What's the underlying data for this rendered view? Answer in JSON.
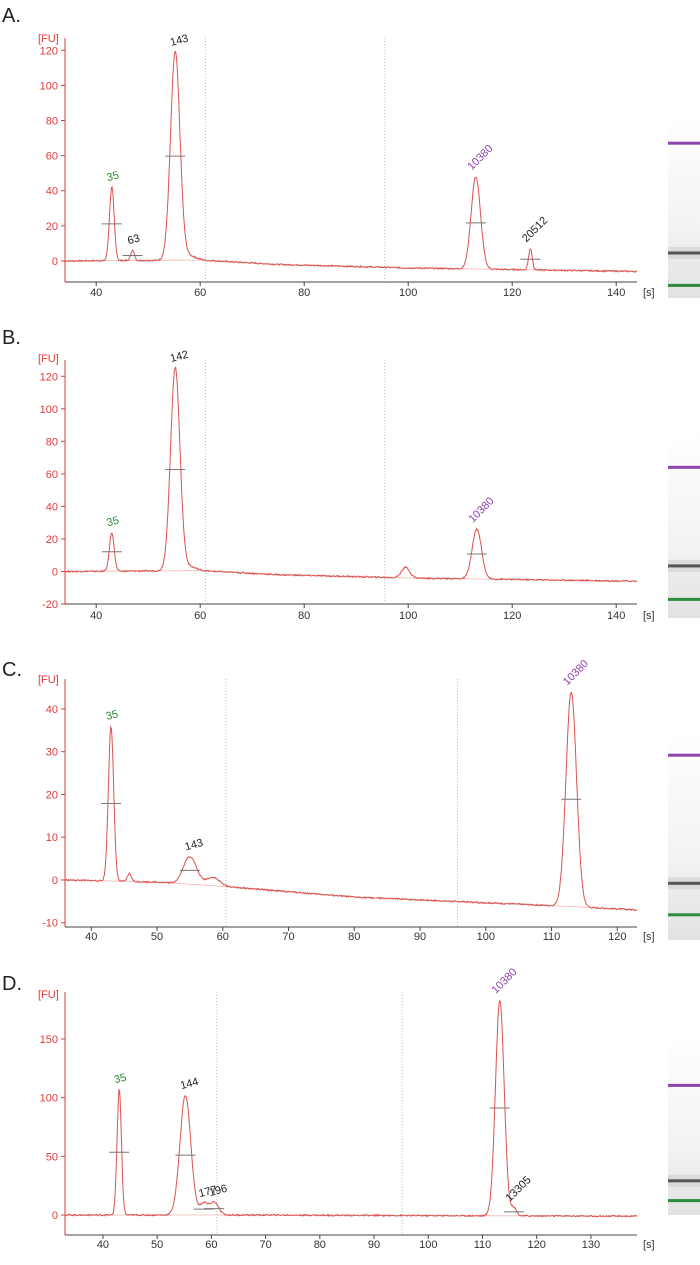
{
  "colors": {
    "axis_red": "#e23b3b",
    "trace": "#d9534f",
    "baseline": "#f2b7b3",
    "marker_lower": "#2e8b3a",
    "marker_upper": "#8e44ad",
    "sample_band": "#555555",
    "vline": "#bbbbbb",
    "peak_black": "#222222"
  },
  "chart_data": [
    {
      "panel": "A.",
      "type": "line",
      "ylabel": "[FU]",
      "xunit": "[s]",
      "xlim": [
        34,
        144
      ],
      "ylim": [
        -12,
        127
      ],
      "xticks": [
        40,
        60,
        80,
        100,
        120,
        140
      ],
      "yticks": [
        0,
        20,
        40,
        60,
        80,
        100,
        120
      ],
      "vlines": [
        61,
        95.5
      ],
      "baseline": [
        [
          34,
          0
        ],
        [
          60,
          0.5
        ],
        [
          75,
          -2
        ],
        [
          100,
          -4
        ],
        [
          144,
          -6
        ]
      ],
      "peaks": [
        {
          "x": 43,
          "y": 42,
          "w": 0.45,
          "label": "35",
          "color": "green"
        },
        {
          "x": 47,
          "y": 6,
          "w": 0.35,
          "label": "63",
          "color": "black"
        },
        {
          "x": 55.2,
          "y": 119,
          "w": 0.9,
          "label": "143",
          "color": "black"
        },
        {
          "x": 57.8,
          "y": 3,
          "w": 1.3
        },
        {
          "x": 113,
          "y": 48,
          "w": 0.9,
          "label": "10380",
          "color": "purple"
        },
        {
          "x": 123.5,
          "y": 7,
          "w": 0.35,
          "label": "20512",
          "color": "black"
        }
      ],
      "gel": {
        "lanes": [
          {
            "pos": 0.14,
            "color": "purple"
          },
          {
            "pos": 0.75,
            "color": "gray"
          },
          {
            "pos": 0.93,
            "color": "green"
          }
        ]
      }
    },
    {
      "panel": "B.",
      "type": "line",
      "ylabel": "[FU]",
      "xunit": "[s]",
      "xlim": [
        34,
        144
      ],
      "ylim": [
        -20,
        130
      ],
      "xticks": [
        40,
        60,
        80,
        100,
        120,
        140
      ],
      "yticks": [
        -20,
        0,
        20,
        40,
        60,
        80,
        100,
        120
      ],
      "vlines": [
        61,
        95.5
      ],
      "baseline": [
        [
          34,
          0
        ],
        [
          60,
          0.5
        ],
        [
          75,
          -2
        ],
        [
          100,
          -4
        ],
        [
          144,
          -6
        ]
      ],
      "peaks": [
        {
          "x": 43,
          "y": 24,
          "w": 0.45,
          "label": "35",
          "color": "green"
        },
        {
          "x": 55.2,
          "y": 125,
          "w": 0.9,
          "label": "142",
          "color": "black"
        },
        {
          "x": 57.8,
          "y": 3,
          "w": 1.3
        },
        {
          "x": 99.5,
          "y": 2.5,
          "w": 0.8
        },
        {
          "x": 113.2,
          "y": 26,
          "w": 0.9,
          "label": "10380",
          "color": "purple"
        }
      ],
      "gel": {
        "lanes": [
          {
            "pos": 0.19,
            "color": "purple"
          },
          {
            "pos": 0.72,
            "color": "gray"
          },
          {
            "pos": 0.9,
            "color": "green"
          }
        ]
      }
    },
    {
      "panel": "C.",
      "type": "line",
      "ylabel": "[FU]",
      "xunit": "[s]",
      "xlim": [
        36,
        123
      ],
      "ylim": [
        -11,
        47
      ],
      "xticks": [
        40,
        50,
        60,
        70,
        80,
        90,
        100,
        110,
        120
      ],
      "yticks": [
        -10,
        0,
        10,
        20,
        30,
        40
      ],
      "vlines": [
        60.5,
        95.7
      ],
      "baseline": [
        [
          36,
          0
        ],
        [
          50,
          -0.5
        ],
        [
          60,
          -1.5
        ],
        [
          80,
          -4
        ],
        [
          110,
          -6
        ],
        [
          123,
          -7
        ]
      ],
      "peaks": [
        {
          "x": 43,
          "y": 36,
          "w": 0.4,
          "label": "35",
          "color": "green"
        },
        {
          "x": 45.8,
          "y": 1.5,
          "w": 0.3
        },
        {
          "x": 55,
          "y": 5.5,
          "w": 1.0,
          "label": "143",
          "color": "black"
        },
        {
          "x": 58.5,
          "y": 0.6,
          "w": 1.0
        },
        {
          "x": 113,
          "y": 44,
          "w": 0.8,
          "label": "10380",
          "color": "purple"
        }
      ],
      "gel": {
        "lanes": [
          {
            "pos": 0.12,
            "color": "purple"
          },
          {
            "pos": 0.73,
            "color": "gray"
          },
          {
            "pos": 0.88,
            "color": "green"
          }
        ]
      }
    },
    {
      "panel": "D.",
      "type": "line",
      "ylabel": "[FU]",
      "xunit": "[s]",
      "xlim": [
        33,
        138.5
      ],
      "ylim": [
        -17,
        190
      ],
      "xticks": [
        40,
        50,
        60,
        70,
        80,
        90,
        100,
        110,
        120,
        130
      ],
      "yticks": [
        0,
        50,
        100,
        150
      ],
      "vlines": [
        61,
        95.2
      ],
      "baseline": [
        [
          33,
          0
        ],
        [
          70,
          0
        ],
        [
          100,
          -0.5
        ],
        [
          138.5,
          -1
        ]
      ],
      "peaks": [
        {
          "x": 43,
          "y": 107,
          "w": 0.4,
          "label": "35",
          "color": "green"
        },
        {
          "x": 55.2,
          "y": 102,
          "w": 1.0,
          "label": "144",
          "color": "black"
        },
        {
          "x": 58.6,
          "y": 10,
          "w": 0.7,
          "label": "177",
          "color": "black"
        },
        {
          "x": 60.5,
          "y": 11,
          "w": 0.8,
          "label": "196",
          "color": "black"
        },
        {
          "x": 113.2,
          "y": 183,
          "w": 0.8,
          "label": "10380",
          "color": "purple"
        },
        {
          "x": 115.8,
          "y": 6,
          "w": 0.5,
          "label": "13305",
          "color": "black"
        }
      ],
      "gel": {
        "lanes": [
          {
            "pos": 0.28,
            "color": "purple"
          },
          {
            "pos": 0.81,
            "color": "gray"
          },
          {
            "pos": 0.92,
            "color": "green"
          }
        ]
      }
    }
  ]
}
